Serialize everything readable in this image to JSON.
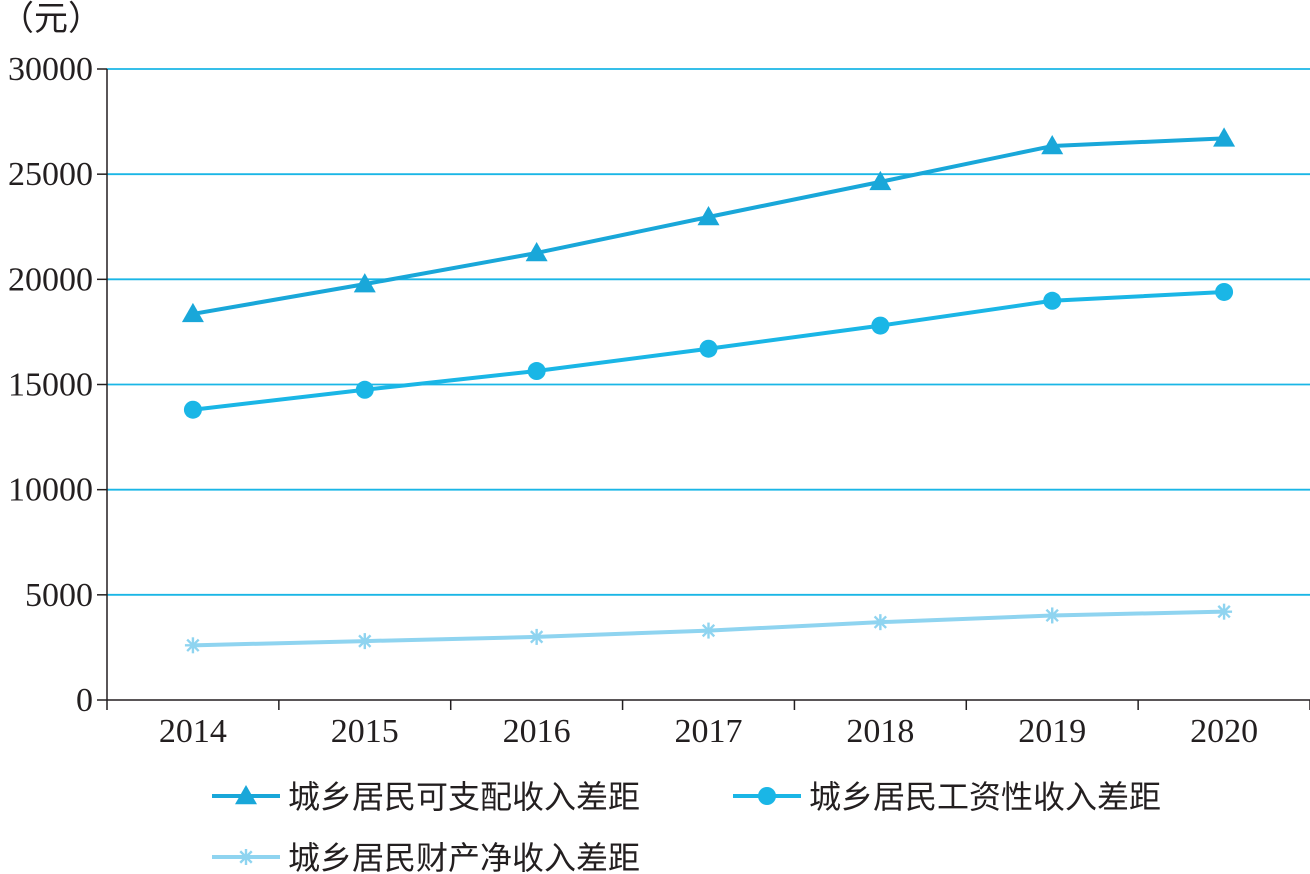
{
  "chart_data": {
    "type": "line",
    "y_unit_label": "（元）",
    "categories": [
      "2014",
      "2015",
      "2016",
      "2017",
      "2018",
      "2019",
      "2020"
    ],
    "ylim": [
      0,
      30000
    ],
    "y_ticks": [
      "0",
      "5000",
      "10000",
      "15000",
      "20000",
      "25000",
      "30000"
    ],
    "grid": true,
    "legend_position": "bottom",
    "series": [
      {
        "name": "城乡居民可支配收入差距",
        "marker": "triangle",
        "color": "#19a7d9",
        "values": [
          18355,
          19773,
          21253,
          22964,
          24634,
          26338,
          26703
        ]
      },
      {
        "name": "城乡居民工资性收入差距",
        "marker": "circle",
        "color": "#1ab6e6",
        "values": [
          13800,
          14750,
          15640,
          16700,
          17800,
          18980,
          19400
        ]
      },
      {
        "name": "城乡居民财产净收入差距",
        "marker": "asterisk",
        "color": "#8fd4f0",
        "values": [
          2600,
          2800,
          3000,
          3300,
          3700,
          4020,
          4200
        ]
      }
    ]
  }
}
